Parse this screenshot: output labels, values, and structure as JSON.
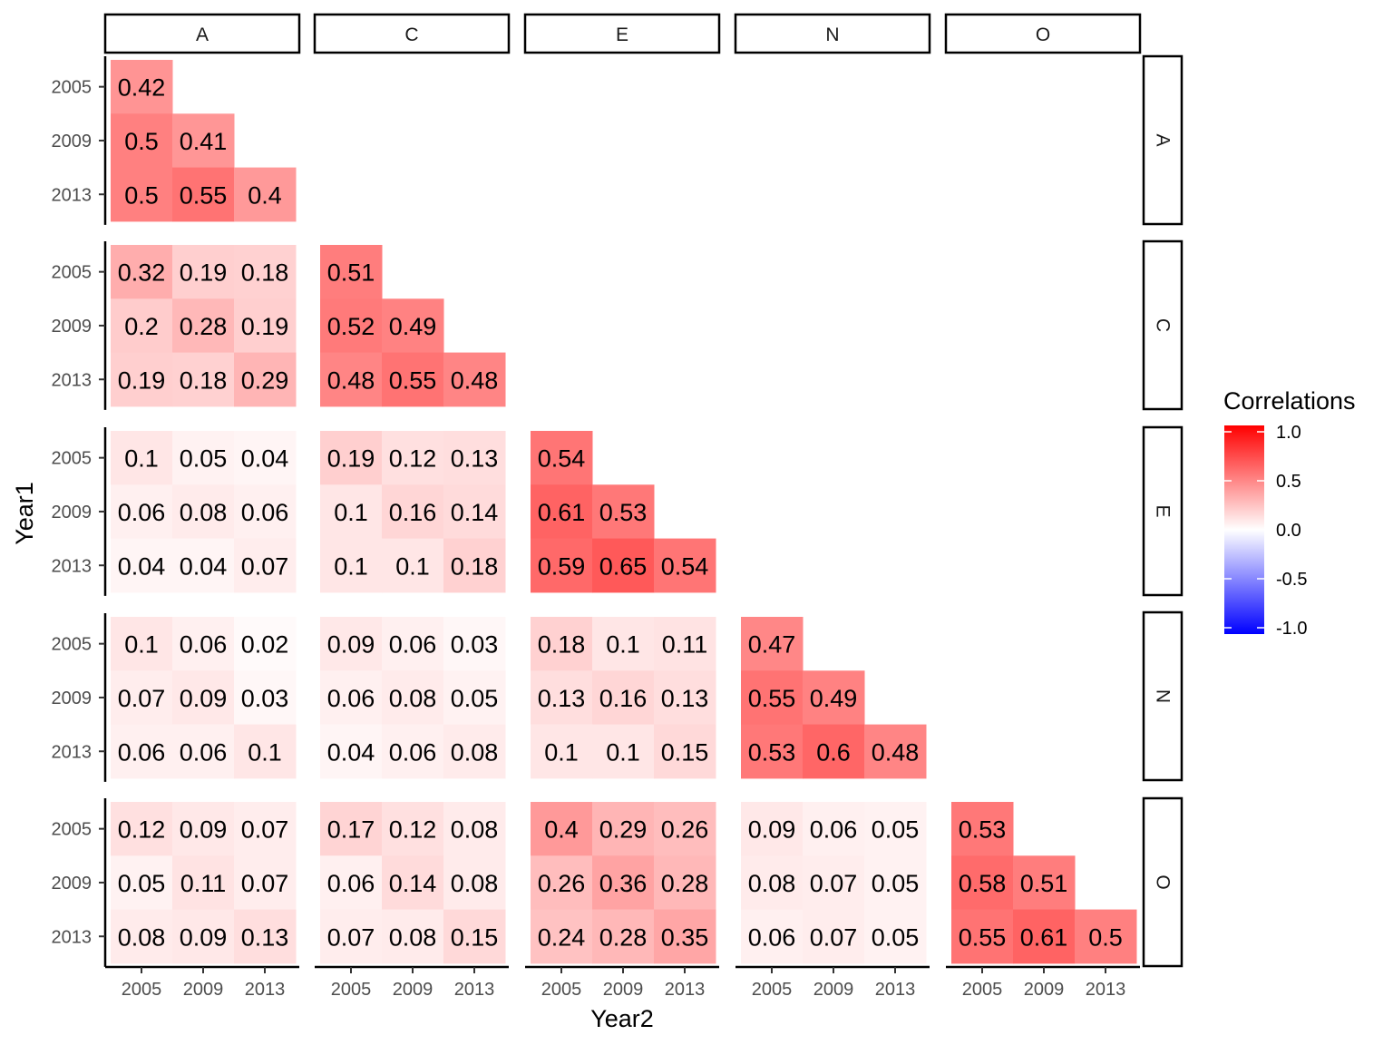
{
  "chart_data": {
    "type": "heatmap",
    "facet_cols": [
      "A",
      "C",
      "E",
      "N",
      "O"
    ],
    "facet_rows": [
      "A",
      "C",
      "E",
      "N",
      "O"
    ],
    "years": [
      "2005",
      "2009",
      "2013"
    ],
    "xlabel": "Year2",
    "ylabel": "Year1",
    "legend": {
      "title": "Correlations",
      "ticks": [
        "1.0",
        "0.5",
        "0.0",
        "-0.5",
        "-1.0"
      ],
      "range": [
        -1,
        1
      ],
      "low_color": "#0000FF",
      "mid_color": "#FFFFFF",
      "high_color": "#FF0000"
    },
    "panels": [
      {
        "row": "A",
        "col": "A",
        "values": [
          [
            0.42,
            null,
            null
          ],
          [
            0.5,
            0.41,
            null
          ],
          [
            0.5,
            0.55,
            0.4
          ]
        ]
      },
      {
        "row": "C",
        "col": "A",
        "values": [
          [
            0.32,
            0.19,
            0.18
          ],
          [
            0.2,
            0.28,
            0.19
          ],
          [
            0.19,
            0.18,
            0.29
          ]
        ]
      },
      {
        "row": "C",
        "col": "C",
        "values": [
          [
            0.51,
            null,
            null
          ],
          [
            0.52,
            0.49,
            null
          ],
          [
            0.48,
            0.55,
            0.48
          ]
        ]
      },
      {
        "row": "E",
        "col": "A",
        "values": [
          [
            0.1,
            0.05,
            0.04
          ],
          [
            0.06,
            0.08,
            0.06
          ],
          [
            0.04,
            0.04,
            0.07
          ]
        ]
      },
      {
        "row": "E",
        "col": "C",
        "values": [
          [
            0.19,
            0.12,
            0.13
          ],
          [
            0.1,
            0.16,
            0.14
          ],
          [
            0.1,
            0.1,
            0.18
          ]
        ]
      },
      {
        "row": "E",
        "col": "E",
        "values": [
          [
            0.54,
            null,
            null
          ],
          [
            0.61,
            0.53,
            null
          ],
          [
            0.59,
            0.65,
            0.54
          ]
        ]
      },
      {
        "row": "N",
        "col": "A",
        "values": [
          [
            0.1,
            0.06,
            0.02
          ],
          [
            0.07,
            0.09,
            0.03
          ],
          [
            0.06,
            0.06,
            0.1
          ]
        ]
      },
      {
        "row": "N",
        "col": "C",
        "values": [
          [
            0.09,
            0.06,
            0.03
          ],
          [
            0.06,
            0.08,
            0.05
          ],
          [
            0.04,
            0.06,
            0.08
          ]
        ]
      },
      {
        "row": "N",
        "col": "E",
        "values": [
          [
            0.18,
            0.1,
            0.11
          ],
          [
            0.13,
            0.16,
            0.13
          ],
          [
            0.1,
            0.1,
            0.15
          ]
        ]
      },
      {
        "row": "N",
        "col": "N",
        "values": [
          [
            0.47,
            null,
            null
          ],
          [
            0.55,
            0.49,
            null
          ],
          [
            0.53,
            0.6,
            0.48
          ]
        ]
      },
      {
        "row": "O",
        "col": "A",
        "values": [
          [
            0.12,
            0.09,
            0.07
          ],
          [
            0.05,
            0.11,
            0.07
          ],
          [
            0.08,
            0.09,
            0.13
          ]
        ]
      },
      {
        "row": "O",
        "col": "C",
        "values": [
          [
            0.17,
            0.12,
            0.08
          ],
          [
            0.06,
            0.14,
            0.08
          ],
          [
            0.07,
            0.08,
            0.15
          ]
        ]
      },
      {
        "row": "O",
        "col": "E",
        "values": [
          [
            0.4,
            0.29,
            0.26
          ],
          [
            0.26,
            0.36,
            0.28
          ],
          [
            0.24,
            0.28,
            0.35
          ]
        ]
      },
      {
        "row": "O",
        "col": "N",
        "values": [
          [
            0.09,
            0.06,
            0.05
          ],
          [
            0.08,
            0.07,
            0.05
          ],
          [
            0.06,
            0.07,
            0.05
          ]
        ]
      },
      {
        "row": "O",
        "col": "O",
        "values": [
          [
            0.53,
            null,
            null
          ],
          [
            0.58,
            0.51,
            null
          ],
          [
            0.55,
            0.61,
            0.5
          ]
        ]
      }
    ]
  }
}
